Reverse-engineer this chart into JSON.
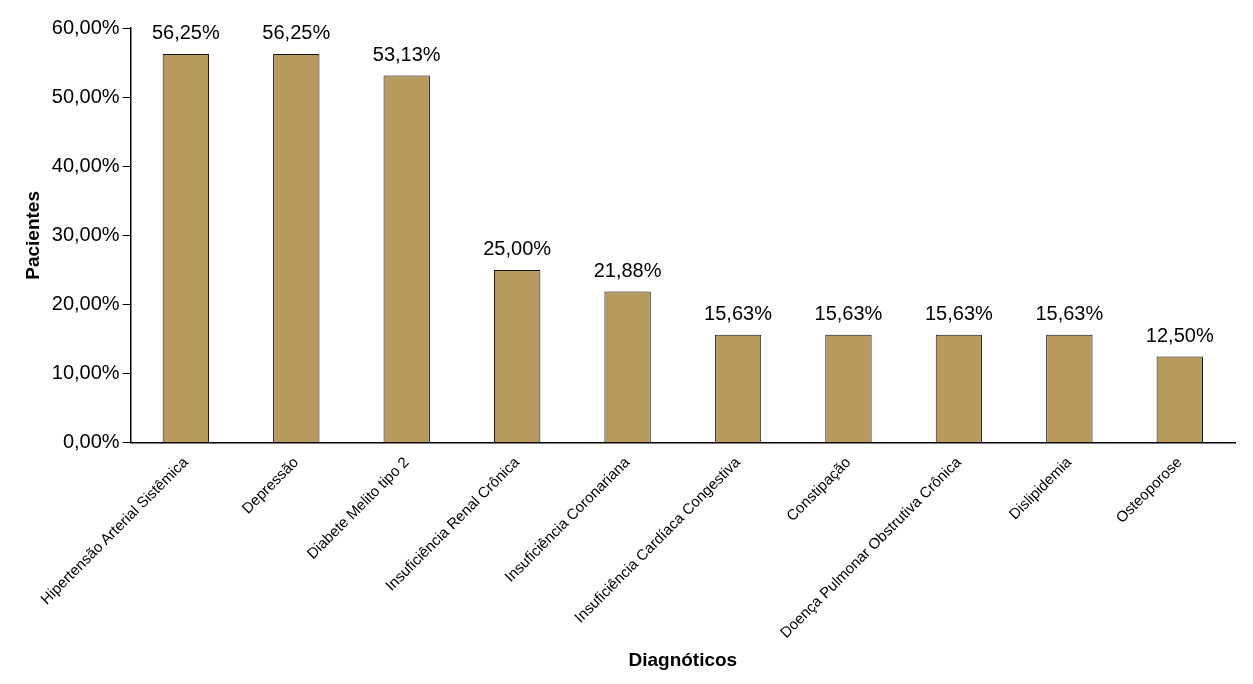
{
  "chart_data": {
    "type": "bar",
    "xlabel": "Diagnóticos",
    "ylabel": "Pacientes",
    "categories": [
      "Hipertensão Arterial Sistêmica",
      "Depressão",
      "Diabete Melito tipo 2",
      "Insuficiência Renal Crônica",
      "Insuficiência Coronariana",
      "Insuficiência Cardíaca Congestiva",
      "Constipação",
      "Doença Pulmonar Obstrutiva Crônica",
      "Dislipidemia",
      "Osteoporose"
    ],
    "values": [
      56.25,
      56.25,
      53.13,
      25.0,
      21.88,
      15.63,
      15.63,
      15.63,
      15.63,
      12.5
    ],
    "value_labels": [
      "56,25%",
      "56,25%",
      "53,13%",
      "25,00%",
      "21,88%",
      "15,63%",
      "15,63%",
      "15,63%",
      "15,63%",
      "12,50%"
    ],
    "color": "#b89a5e",
    "ylim": [
      0,
      60
    ],
    "yticks": [
      {
        "value": 0,
        "label": "0,00%"
      },
      {
        "value": 10,
        "label": "10,00%"
      },
      {
        "value": 20,
        "label": "20,00%"
      },
      {
        "value": 30,
        "label": "30,00%"
      },
      {
        "value": 40,
        "label": "40,00%"
      },
      {
        "value": 50,
        "label": "50,00%"
      },
      {
        "value": 60,
        "label": "60,00%"
      }
    ],
    "grid": false,
    "legend": false
  }
}
